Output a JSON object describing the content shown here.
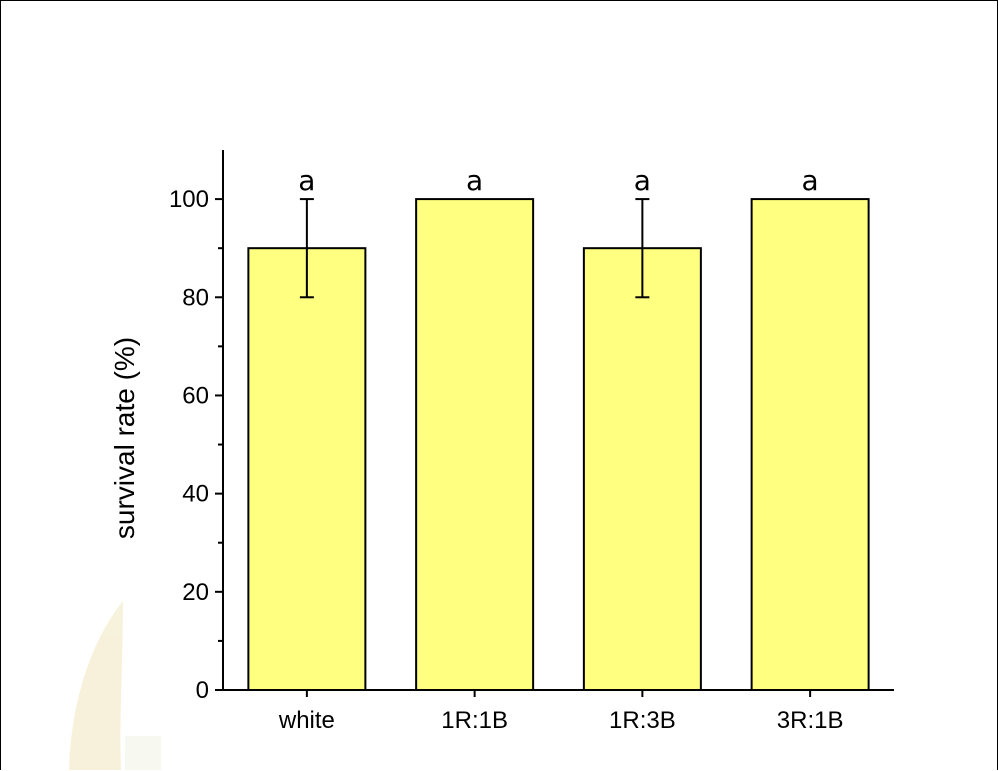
{
  "chart_data": {
    "type": "bar",
    "title": "",
    "xlabel": "",
    "ylabel": "survival rate (%)",
    "categories": [
      "white",
      "1R:1B",
      "1R:3B",
      "3R:1B"
    ],
    "values": [
      90,
      100,
      90,
      100
    ],
    "error": [
      10,
      0,
      10,
      0
    ],
    "significance": [
      "a",
      "a",
      "a",
      "a"
    ],
    "ylim": [
      0,
      110
    ],
    "yticks": [
      0,
      20,
      40,
      60,
      80,
      100
    ],
    "grid": false,
    "bar_color": "#ffff80",
    "edge_color": "#000000"
  },
  "watermark_color": "#e9d99a"
}
